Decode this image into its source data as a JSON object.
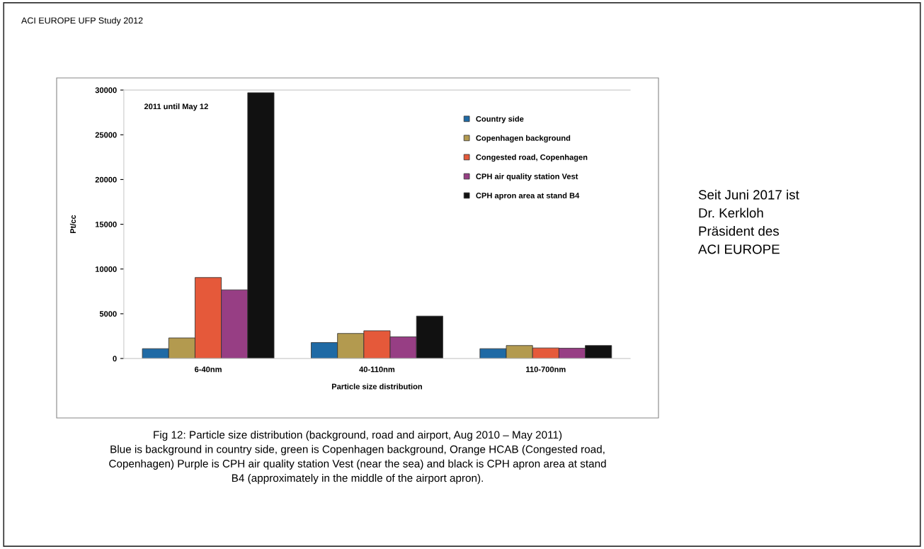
{
  "chart_data": {
    "type": "bar",
    "title": "ACI EUROPE UFP Study 2012",
    "xlabel": "Particle size distribution",
    "ylabel": "Pt/cc",
    "categories": [
      "6-40nm",
      "40-110nm",
      "110-700nm"
    ],
    "series": [
      {
        "name": "Country side",
        "color": "#1f6aa5",
        "values": [
          1100,
          1780,
          1100
        ]
      },
      {
        "name": "Copenhagen background",
        "color": "#b39a4f",
        "values": [
          2300,
          2800,
          1450
        ]
      },
      {
        "name": "Congested road, Copenhagen",
        "color": "#e5593a",
        "values": [
          9050,
          3100,
          1180
        ]
      },
      {
        "name": "CPH air quality station Vest",
        "color": "#973e84",
        "values": [
          7670,
          2420,
          1150
        ]
      },
      {
        "name": "CPH apron area at stand B4",
        "color": "#111111",
        "values": [
          29700,
          4740,
          1450
        ]
      }
    ],
    "ylim": [
      0,
      30000
    ],
    "yticks": [
      0,
      5000,
      10000,
      15000,
      20000,
      25000,
      30000
    ],
    "grid": false,
    "legend": "top right",
    "annotations": [
      "2011 until May 12",
      "Fig 12: Particle size distribution (background, road and airport, Aug 2010 – May 2011)\nBlue is background in country side, green is Copenhagen background, Orange HCAB (Congested road,\nCopenhagen) Purple is CPH air quality station Vest (near the sea) and black is CPH apron area at stand\nB4 (approximately in the middle of the airport apron).",
      "Seit Juni 2017 ist\nDr. Kerkloh\nPräsident des\nACI EUROPE"
    ]
  }
}
